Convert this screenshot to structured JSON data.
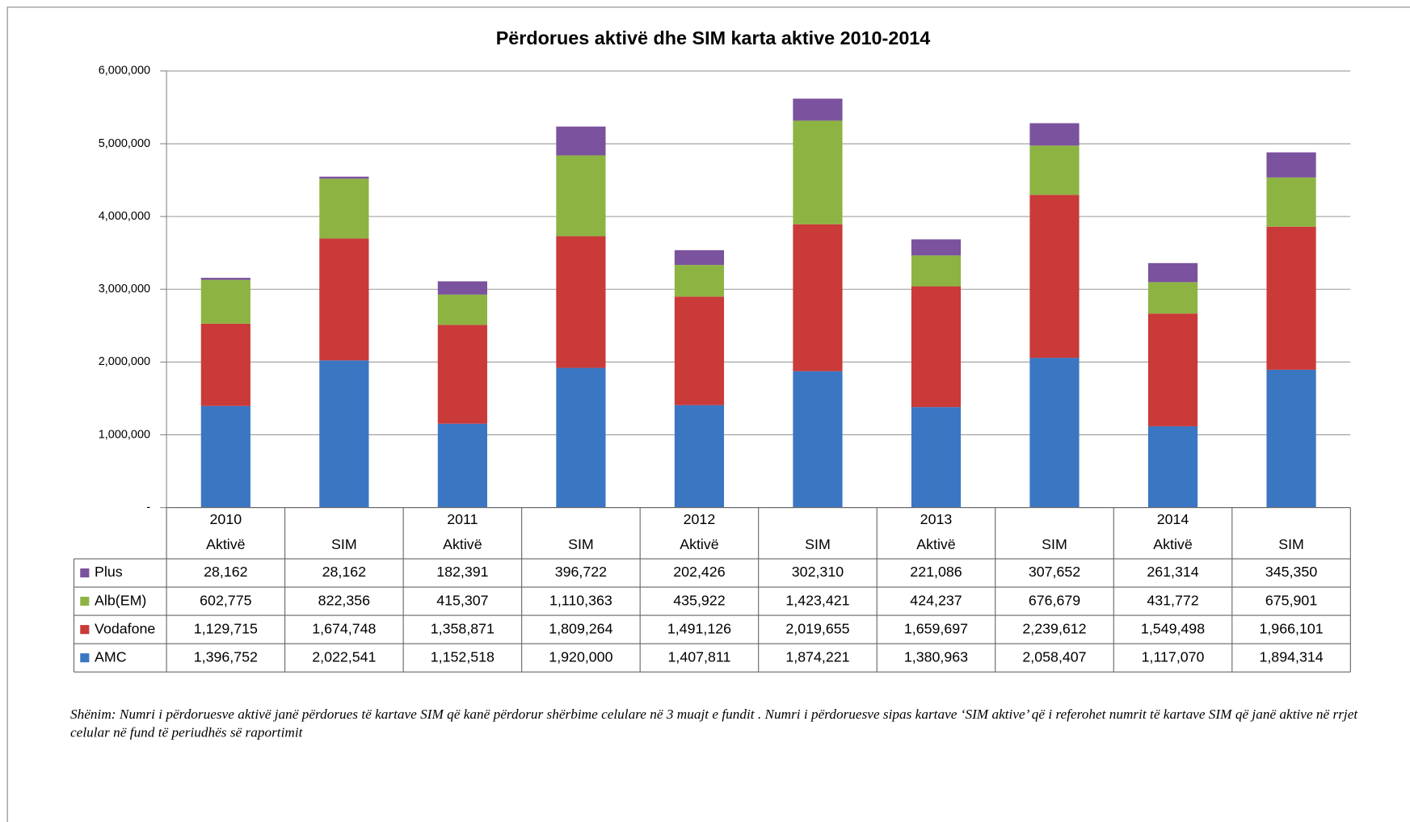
{
  "chart_data": {
    "type": "stacked_bar",
    "title": "Përdorues aktivë dhe SIM karta aktive 2010-2014",
    "years": [
      "2010",
      null,
      "2011",
      null,
      "2012",
      null,
      "2013",
      null,
      "2014",
      null
    ],
    "categories": [
      "Aktivë",
      "SIM",
      "Aktivë",
      "SIM",
      "Aktivë",
      "SIM",
      "Aktivë",
      "SIM",
      "Aktivë",
      "SIM"
    ],
    "series": [
      {
        "name": "Plus",
        "color": "#7b529e",
        "values": [
          28162,
          28162,
          182391,
          396722,
          202426,
          302310,
          221086,
          307652,
          261314,
          345350
        ],
        "value_labels": [
          "28,162",
          "28,162",
          "182,391",
          "396,722",
          "202,426",
          "302,310",
          "221,086",
          "307,652",
          "261,314",
          "345,350"
        ]
      },
      {
        "name": "Alb(EM)",
        "color": "#8db443",
        "values": [
          602775,
          822356,
          415307,
          1110363,
          435922,
          1423421,
          424237,
          676679,
          431772,
          675901
        ],
        "value_labels": [
          "602,775",
          "822,356",
          "415,307",
          "1,110,363",
          "435,922",
          "1,423,421",
          "424,237",
          "676,679",
          "431,772",
          "675,901"
        ]
      },
      {
        "name": "Vodafone",
        "color": "#c93a39",
        "values": [
          1129715,
          1674748,
          1358871,
          1809264,
          1491126,
          2019655,
          1659697,
          2239612,
          1549498,
          1966101
        ],
        "value_labels": [
          "1,129,715",
          "1,674,748",
          "1,358,871",
          "1,809,264",
          "1,491,126",
          "2,019,655",
          "1,659,697",
          "2,239,612",
          "1,549,498",
          "1,966,101"
        ]
      },
      {
        "name": "AMC",
        "color": "#3b76c2",
        "values": [
          1396752,
          2022541,
          1152518,
          1920000,
          1407811,
          1874221,
          1380963,
          2058407,
          1117070,
          1894314
        ],
        "value_labels": [
          "1,396,752",
          "2,022,541",
          "1,152,518",
          "1,920,000",
          "1,407,811",
          "1,874,221",
          "1,380,963",
          "2,058,407",
          "1,117,070",
          "1,894,314"
        ]
      }
    ],
    "ylim": [
      0,
      6000000
    ],
    "yticks": [
      {
        "value": 0,
        "label": "-"
      },
      {
        "value": 1000000,
        "label": "1,000,000"
      },
      {
        "value": 2000000,
        "label": "2,000,000"
      },
      {
        "value": 3000000,
        "label": "3,000,000"
      },
      {
        "value": 4000000,
        "label": "4,000,000"
      },
      {
        "value": 5000000,
        "label": "5,000,000"
      },
      {
        "value": 6000000,
        "label": "6,000,000"
      }
    ],
    "grid": true,
    "note": "Shënim: Numri i përdoruesve aktivë janë përdorues të kartave SIM që kanë përdorur shërbime celulare në 3 muajt e fundit . Numri i përdoruesve sipas kartave ‘SIM aktive’ që i referohet numrit të kartave SIM që janë aktive në rrjet celular në fund të periudhës së raportimit"
  }
}
